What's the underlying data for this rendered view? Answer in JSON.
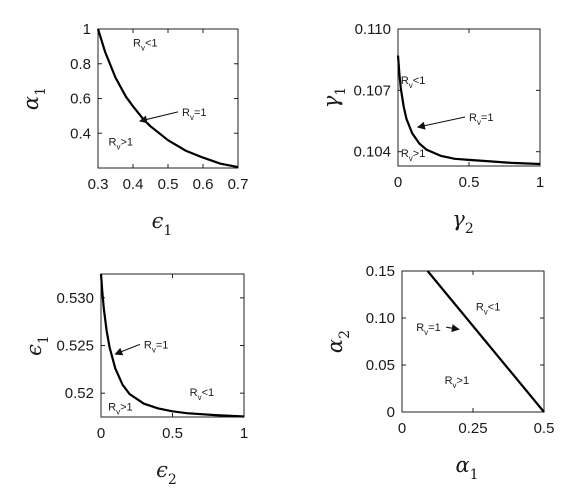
{
  "chart_data": [
    {
      "type": "line",
      "xlabel": {
        "symbol": "ϵ",
        "sub": "1"
      },
      "ylabel": {
        "symbol": "α",
        "sub": "1"
      },
      "xlim": [
        0.3,
        0.7
      ],
      "ylim": [
        0.2,
        1.0
      ],
      "xticks": [
        0.3,
        0.4,
        0.5,
        0.6,
        0.7
      ],
      "xtick_labels": [
        "0.3",
        "0.4",
        "0.5",
        "0.6",
        "0.7"
      ],
      "yticks": [
        0.4,
        0.6,
        0.8,
        1.0
      ],
      "ytick_labels": [
        "0.4",
        "0.6",
        "0.8",
        "1"
      ],
      "series": [
        {
          "points": [
            [
              0.3,
              1.0
            ],
            [
              0.32,
              0.87
            ],
            [
              0.35,
              0.72
            ],
            [
              0.38,
              0.61
            ],
            [
              0.4,
              0.555
            ],
            [
              0.43,
              0.48
            ],
            [
              0.45,
              0.44
            ],
            [
              0.5,
              0.36
            ],
            [
              0.55,
              0.3
            ],
            [
              0.6,
              0.26
            ],
            [
              0.65,
              0.225
            ],
            [
              0.7,
              0.205
            ]
          ]
        }
      ],
      "annotations": [
        {
          "main": "R",
          "sub": "v",
          "rest": "<1",
          "x": 0.4,
          "y": 0.9
        },
        {
          "main": "R",
          "sub": "v",
          "rest": "=1",
          "x": 0.54,
          "y": 0.5,
          "arrow_to": [
            0.42,
            0.47
          ]
        },
        {
          "main": "R",
          "sub": "v",
          "rest": ">1",
          "x": 0.33,
          "y": 0.33
        }
      ]
    },
    {
      "type": "line",
      "xlabel": {
        "symbol": "γ",
        "sub": "2"
      },
      "ylabel": {
        "symbol": "γ",
        "sub": "1"
      },
      "xlim": [
        0,
        1
      ],
      "ylim": [
        0.1033,
        0.11
      ],
      "xticks": [
        0,
        0.5,
        1
      ],
      "xtick_labels": [
        "0",
        "0.5",
        "1"
      ],
      "yticks": [
        0.104,
        0.107,
        0.11
      ],
      "ytick_labels": [
        "0.104",
        "0.107",
        "0.110"
      ],
      "series": [
        {
          "points": [
            [
              0.0,
              0.1087
            ],
            [
              0.01,
              0.1078
            ],
            [
              0.02,
              0.1071
            ],
            [
              0.04,
              0.1062
            ],
            [
              0.06,
              0.1056
            ],
            [
              0.1,
              0.1049
            ],
            [
              0.15,
              0.1044
            ],
            [
              0.2,
              0.1041
            ],
            [
              0.3,
              0.1038
            ],
            [
              0.4,
              0.10365
            ],
            [
              0.5,
              0.1036
            ],
            [
              0.6,
              0.10355
            ],
            [
              0.7,
              0.1035
            ],
            [
              0.8,
              0.10345
            ],
            [
              1.0,
              0.1034
            ]
          ]
        }
      ],
      "annotations": [
        {
          "main": "R",
          "sub": "v",
          "rest": "<1",
          "x": 0.02,
          "y": 0.1073
        },
        {
          "main": "R",
          "sub": "v",
          "rest": "=1",
          "x": 0.5,
          "y": 0.1055,
          "arrow_to": [
            0.14,
            0.1052
          ]
        },
        {
          "main": "R",
          "sub": "v",
          "rest": ">1",
          "x": 0.02,
          "y": 0.10375
        }
      ]
    },
    {
      "type": "line",
      "xlabel": {
        "symbol": "ϵ",
        "sub": "2"
      },
      "ylabel": {
        "symbol": "ϵ",
        "sub": "1"
      },
      "xlim": [
        0,
        1
      ],
      "ylim": [
        0.5175,
        0.5325
      ],
      "xticks": [
        0,
        0.5,
        1
      ],
      "xtick_labels": [
        "0",
        "0.5",
        "1"
      ],
      "yticks": [
        0.52,
        0.525,
        0.53
      ],
      "ytick_labels": [
        "0.52",
        "0.525",
        "0.530"
      ],
      "series": [
        {
          "points": [
            [
              0.0,
              0.5325
            ],
            [
              0.01,
              0.5305
            ],
            [
              0.02,
              0.5288
            ],
            [
              0.04,
              0.5265
            ],
            [
              0.06,
              0.5248
            ],
            [
              0.1,
              0.5226
            ],
            [
              0.15,
              0.5209
            ],
            [
              0.2,
              0.5199
            ],
            [
              0.3,
              0.5189
            ],
            [
              0.4,
              0.5184
            ],
            [
              0.5,
              0.5181
            ],
            [
              0.6,
              0.5179
            ],
            [
              0.8,
              0.5177
            ],
            [
              1.0,
              0.51755
            ]
          ]
        }
      ],
      "annotations": [
        {
          "main": "R",
          "sub": "v",
          "rest": "=1",
          "x": 0.3,
          "y": 0.5247,
          "arrow_to": [
            0.1,
            0.5241
          ]
        },
        {
          "main": "R",
          "sub": "v",
          "rest": "<1",
          "x": 0.62,
          "y": 0.5197
        },
        {
          "main": "R",
          "sub": "v",
          "rest": ">1",
          "x": 0.05,
          "y": 0.5182
        }
      ]
    },
    {
      "type": "line",
      "xlabel": {
        "symbol": "α",
        "sub": "1"
      },
      "ylabel": {
        "symbol": "α",
        "sub": "2"
      },
      "xlim": [
        0,
        0.5
      ],
      "ylim": [
        0,
        0.15
      ],
      "xticks": [
        0,
        0.25,
        0.5
      ],
      "xtick_labels": [
        "0",
        "0.25",
        "0.5"
      ],
      "yticks": [
        0,
        0.05,
        0.1,
        0.15
      ],
      "ytick_labels": [
        "0",
        "0.05",
        "0.10",
        "0.15"
      ],
      "series": [
        {
          "points": [
            [
              0.09,
              0.15
            ],
            [
              0.5,
              0.0
            ]
          ]
        }
      ],
      "annotations": [
        {
          "main": "R",
          "sub": "v",
          "rest": "<1",
          "x": 0.26,
          "y": 0.108
        },
        {
          "main": "R",
          "sub": "v",
          "rest": "=1",
          "x": 0.05,
          "y": 0.086,
          "arrow_to": [
            0.2,
            0.088
          ]
        },
        {
          "main": "R",
          "sub": "v",
          "rest": ">1",
          "x": 0.15,
          "y": 0.03
        }
      ]
    }
  ]
}
